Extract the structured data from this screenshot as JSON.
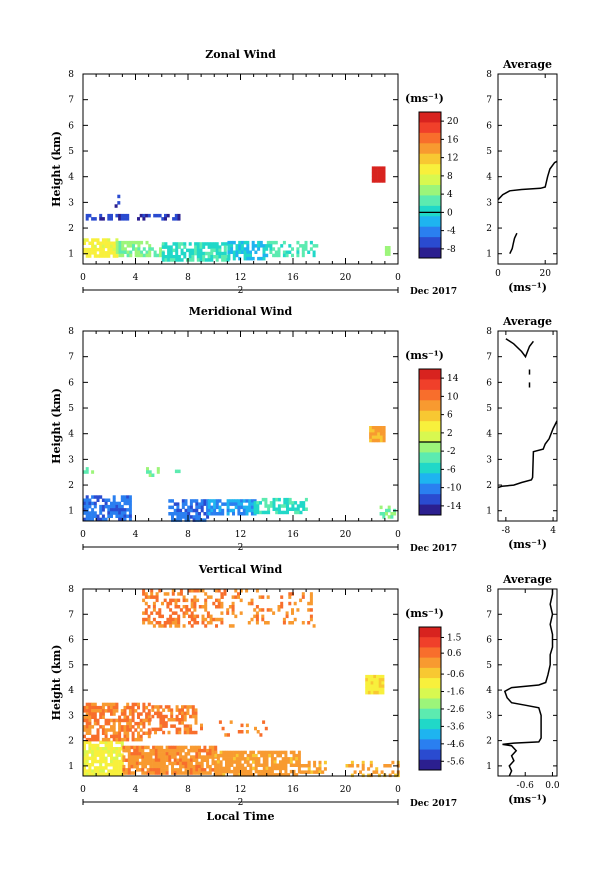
{
  "colormap": [
    "#2b1f8f",
    "#2a4bd0",
    "#2a7ff0",
    "#1eb4f0",
    "#20d8c8",
    "#5cebb0",
    "#9cf57a",
    "#d8f850",
    "#f8f03c",
    "#f8c832",
    "#f89a30",
    "#f86e2c",
    "#f0402a",
    "#d8231f"
  ],
  "chart_data": [
    {
      "type": "heatmap",
      "title": "Zonal Wind",
      "ylabel": "Height (km)",
      "xlabel": "",
      "x_ticks": [
        "0",
        "4",
        "8",
        "12",
        "16",
        "20",
        "0"
      ],
      "xlim": [
        0,
        24
      ],
      "ylim": [
        0.6,
        8
      ],
      "y_ticks": [
        "1",
        "2",
        "3",
        "4",
        "5",
        "6",
        "7",
        "8"
      ],
      "date_marker": "2",
      "date_label": "Dec 2017",
      "colorbar": {
        "unit": "(ms⁻¹)",
        "ticks": [
          "20",
          "16",
          "12",
          "8",
          "4",
          "0",
          "-4",
          "-8"
        ],
        "range": [
          -10,
          22
        ],
        "zero_line": 0
      },
      "profile": {
        "title": "Average",
        "xlabel": "(ms⁻¹)",
        "x_ticks": [
          "0",
          "20"
        ],
        "x_tick_values": [
          0,
          20
        ],
        "xlim": [
          0,
          25
        ],
        "segments": [
          [
            [
              5,
              1.0
            ],
            [
              6,
              1.2
            ],
            [
              6.5,
              1.4
            ],
            [
              7,
              1.6
            ],
            [
              8,
              1.8
            ]
          ],
          [
            [
              0,
              3.1
            ],
            [
              2,
              3.3
            ],
            [
              5,
              3.45
            ],
            [
              10,
              3.5
            ],
            [
              18,
              3.55
            ],
            [
              20,
              3.6
            ],
            [
              21,
              4.0
            ],
            [
              22,
              4.3
            ],
            [
              24,
              4.55
            ],
            [
              25,
              4.6
            ]
          ]
        ]
      },
      "regions": [
        {
          "t": [
            0.0,
            2.5
          ],
          "h": [
            0.9,
            1.6
          ],
          "v": 9,
          "density": 0.78
        },
        {
          "t": [
            2.5,
            6.0
          ],
          "h": [
            0.9,
            1.5
          ],
          "v": 4,
          "density": 0.7
        },
        {
          "t": [
            6.0,
            11.0
          ],
          "h": [
            0.75,
            1.45
          ],
          "v": 1,
          "density": 0.78
        },
        {
          "t": [
            11.0,
            14.0
          ],
          "h": [
            0.8,
            1.5
          ],
          "v": -1,
          "density": 0.72
        },
        {
          "t": [
            14.0,
            17.8
          ],
          "h": [
            1.0,
            1.5
          ],
          "v": 2,
          "density": 0.45
        },
        {
          "t": [
            0.0,
            7.5
          ],
          "h": [
            2.35,
            2.55
          ],
          "v": -7,
          "density": 0.45
        },
        {
          "t": [
            2.2,
            2.8
          ],
          "h": [
            2.8,
            3.3
          ],
          "v": -7,
          "density": 0.25
        },
        {
          "t": [
            22.0,
            23.0
          ],
          "h": [
            3.8,
            4.4
          ],
          "v": 21,
          "density": 1.0
        },
        {
          "t": [
            23.0,
            23.4
          ],
          "h": [
            1.0,
            1.3
          ],
          "v": 6,
          "density": 0.7
        }
      ]
    },
    {
      "type": "heatmap",
      "title": "Meridional Wind",
      "ylabel": "Height (km)",
      "xlabel": "",
      "x_ticks": [
        "0",
        "4",
        "8",
        "12",
        "16",
        "20",
        "0"
      ],
      "xlim": [
        0,
        24
      ],
      "ylim": [
        0.6,
        8
      ],
      "y_ticks": [
        "1",
        "2",
        "3",
        "4",
        "5",
        "6",
        "7",
        "8"
      ],
      "date_marker": "2",
      "date_label": "Dec 2017",
      "colorbar": {
        "unit": "(ms⁻¹)",
        "ticks": [
          "14",
          "10",
          "6",
          "2",
          "-2",
          "-6",
          "-10",
          "-14"
        ],
        "range": [
          -16,
          16
        ],
        "zero_line": 0
      },
      "profile": {
        "title": "Average",
        "xlabel": "(ms⁻¹)",
        "x_ticks": [
          "-8",
          "4"
        ],
        "x_tick_values": [
          -8,
          4
        ],
        "xlim": [
          -10,
          5
        ],
        "segments": [
          [
            [
              -10,
              1.9
            ],
            [
              -9,
              1.95
            ],
            [
              -6,
              2.0
            ],
            [
              -4,
              2.1
            ],
            [
              -1.5,
              2.2
            ],
            [
              -1.2,
              2.3
            ],
            [
              -1.0,
              3.3
            ],
            [
              1.5,
              3.4
            ],
            [
              2,
              3.6
            ],
            [
              3,
              3.8
            ],
            [
              4,
              4.2
            ],
            [
              5,
              4.5
            ]
          ],
          [
            [
              -8,
              7.7
            ],
            [
              -7,
              7.6
            ],
            [
              -6,
              7.5
            ],
            [
              -4,
              7.2
            ],
            [
              -3,
              7.0
            ],
            [
              -2,
              7.4
            ],
            [
              -1,
              7.6
            ]
          ],
          [
            [
              -2,
              6.3
            ],
            [
              -2,
              6.5
            ]
          ],
          [
            [
              -2,
              5.8
            ],
            [
              -2,
              6.0
            ]
          ]
        ]
      },
      "regions": [
        {
          "t": [
            0.0,
            3.5
          ],
          "h": [
            0.7,
            1.6
          ],
          "v": -11,
          "density": 0.72
        },
        {
          "t": [
            6.5,
            9.5
          ],
          "h": [
            0.7,
            1.45
          ],
          "v": -11,
          "density": 0.72
        },
        {
          "t": [
            9.5,
            13.0
          ],
          "h": [
            0.9,
            1.45
          ],
          "v": -9,
          "density": 0.75
        },
        {
          "t": [
            13.0,
            17.0
          ],
          "h": [
            0.95,
            1.5
          ],
          "v": -5,
          "density": 0.6
        },
        {
          "t": [
            0.0,
            1.0
          ],
          "h": [
            2.4,
            2.7
          ],
          "v": -3,
          "density": 0.5
        },
        {
          "t": [
            4.8,
            6.0
          ],
          "h": [
            2.4,
            2.7
          ],
          "v": -2,
          "density": 0.5
        },
        {
          "t": [
            7.0,
            7.7
          ],
          "h": [
            2.45,
            2.6
          ],
          "v": -3,
          "density": 0.45
        },
        {
          "t": [
            21.8,
            22.9
          ],
          "h": [
            3.8,
            4.3
          ],
          "v": 7,
          "density": 1.0
        },
        {
          "t": [
            22.6,
            23.8
          ],
          "h": [
            0.8,
            1.2
          ],
          "v": -2,
          "density": 0.5
        }
      ]
    },
    {
      "type": "heatmap",
      "title": "Vertical Wind",
      "ylabel": "Height (km)",
      "xlabel": "Local Time",
      "x_ticks": [
        "0",
        "4",
        "8",
        "12",
        "16",
        "20",
        "0"
      ],
      "xlim": [
        0,
        24
      ],
      "ylim": [
        0.6,
        8
      ],
      "y_ticks": [
        "1",
        "2",
        "3",
        "4",
        "5",
        "6",
        "7",
        "8"
      ],
      "date_marker": "2",
      "date_label": "Dec 2017",
      "colorbar": {
        "unit": "(ms⁻¹)",
        "ticks": [
          "1.5",
          "0.6",
          "-0.6",
          "-1.6",
          "-2.6",
          "-3.6",
          "-4.6",
          "-5.6"
        ],
        "range": [
          -6.1,
          2.1
        ],
        "zero_line": null
      },
      "profile": {
        "title": "Average",
        "xlabel": "(ms⁻¹)",
        "x_ticks": [
          "-0.6",
          "0.0"
        ],
        "x_tick_values": [
          -0.6,
          0.0
        ],
        "xlim": [
          -1.2,
          0.1
        ],
        "segments": [
          [
            [
              -0.95,
              0.6
            ],
            [
              -0.9,
              0.8
            ],
            [
              -0.95,
              1.0
            ],
            [
              -0.85,
              1.2
            ],
            [
              -0.9,
              1.4
            ],
            [
              -0.8,
              1.6
            ],
            [
              -0.9,
              1.8
            ],
            [
              -1.1,
              1.85
            ],
            [
              -0.85,
              1.9
            ],
            [
              -0.3,
              1.95
            ],
            [
              -0.25,
              2.1
            ],
            [
              -0.25,
              3.0
            ],
            [
              -0.3,
              3.3
            ],
            [
              -0.6,
              3.4
            ],
            [
              -0.9,
              3.5
            ],
            [
              -1.0,
              3.7
            ],
            [
              -1.05,
              3.95
            ],
            [
              -0.9,
              4.1
            ],
            [
              -0.3,
              4.2
            ],
            [
              -0.15,
              4.3
            ],
            [
              -0.1,
              4.6
            ],
            [
              -0.05,
              5.0
            ],
            [
              -0.05,
              5.4
            ],
            [
              0.0,
              5.7
            ],
            [
              0.0,
              6.2
            ],
            [
              -0.05,
              6.6
            ],
            [
              0.0,
              7.0
            ],
            [
              -0.05,
              7.4
            ],
            [
              0.0,
              7.8
            ],
            [
              0.0,
              8.0
            ]
          ]
        ]
      },
      "regions": [
        {
          "t": [
            0.0,
            3.0
          ],
          "h": [
            0.7,
            2.0
          ],
          "v": -1.2,
          "density": 0.85
        },
        {
          "t": [
            3.0,
            10.0
          ],
          "h": [
            0.7,
            1.8
          ],
          "v": 0.2,
          "density": 0.85
        },
        {
          "t": [
            10.0,
            16.5
          ],
          "h": [
            0.7,
            1.6
          ],
          "v": 0.0,
          "density": 0.8
        },
        {
          "t": [
            16.5,
            18.5
          ],
          "h": [
            0.8,
            1.2
          ],
          "v": -0.2,
          "density": 0.5
        },
        {
          "t": [
            0.0,
            5.0
          ],
          "h": [
            2.0,
            3.5
          ],
          "v": 0.4,
          "density": 0.7
        },
        {
          "t": [
            5.0,
            8.5
          ],
          "h": [
            2.3,
            3.4
          ],
          "v": 0.5,
          "density": 0.55
        },
        {
          "t": [
            8.5,
            14.0
          ],
          "h": [
            2.1,
            2.8
          ],
          "v": 0.4,
          "density": 0.15
        },
        {
          "t": [
            4.5,
            10.5
          ],
          "h": [
            6.5,
            8.0
          ],
          "v": 0.4,
          "density": 0.45
        },
        {
          "t": [
            10.5,
            17.5
          ],
          "h": [
            6.6,
            8.0
          ],
          "v": 0.3,
          "density": 0.18
        },
        {
          "t": [
            21.5,
            22.9
          ],
          "h": [
            3.9,
            4.6
          ],
          "v": -1.0,
          "density": 1.0
        },
        {
          "t": [
            20.0,
            24.0
          ],
          "h": [
            0.65,
            1.2
          ],
          "v": -0.2,
          "density": 0.35
        }
      ]
    }
  ]
}
